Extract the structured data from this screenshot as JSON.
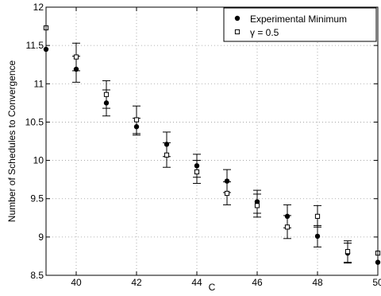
{
  "chart_data": {
    "type": "scatter",
    "xlabel": "C",
    "ylabel": "Number of Schedules to Convergence",
    "xlim": [
      39,
      50
    ],
    "ylim": [
      8.5,
      12
    ],
    "xticks": [
      40,
      42,
      44,
      46,
      48,
      50
    ],
    "yticks": [
      8.5,
      9,
      9.5,
      10,
      10.5,
      11,
      11.5,
      12
    ],
    "grid": true,
    "legend_position": "top-right",
    "series": [
      {
        "name": "Experimental Minimum",
        "marker": "filled-circle",
        "x": [
          39,
          40,
          41,
          42,
          43,
          44,
          45,
          46,
          47,
          48,
          49,
          50
        ],
        "y": [
          11.45,
          11.19,
          10.75,
          10.44,
          10.21,
          9.93,
          9.73,
          9.46,
          9.27,
          9.01,
          8.79,
          8.67
        ],
        "yerr": [
          null,
          0.17,
          0.17,
          0.11,
          0.16,
          0.15,
          0.15,
          0.15,
          0.15,
          0.14,
          0.13,
          null
        ]
      },
      {
        "name": "γ = 0.5",
        "marker": "open-square",
        "x": [
          39,
          40,
          41,
          42,
          43,
          44,
          45,
          46,
          47,
          48,
          49,
          50
        ],
        "y": [
          11.73,
          11.35,
          10.86,
          10.53,
          10.07,
          9.85,
          9.57,
          9.41,
          9.13,
          9.27,
          8.81,
          8.79
        ],
        "yerr": [
          null,
          0.18,
          0.18,
          0.18,
          0.16,
          0.15,
          0.15,
          0.15,
          0.15,
          0.14,
          0.14,
          null
        ]
      }
    ]
  }
}
